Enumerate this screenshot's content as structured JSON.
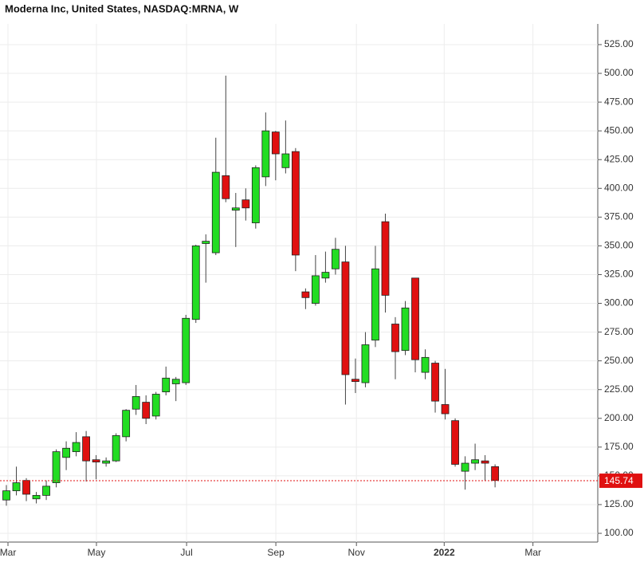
{
  "chart_data": {
    "type": "candlestick",
    "title": "Moderna Inc, United States, NASDAQ:MRNA, W",
    "open": [
      129,
      137,
      146,
      130,
      133,
      144,
      166,
      171,
      184,
      164,
      161,
      163,
      184,
      208,
      214,
      202,
      223,
      230,
      231,
      286,
      352,
      344,
      411,
      381,
      390,
      370,
      410,
      449,
      418,
      432,
      310,
      300,
      322,
      330,
      336,
      234,
      231,
      268,
      371,
      282,
      259,
      322,
      240,
      248,
      212,
      198,
      154,
      161,
      163,
      158
    ],
    "high": [
      142,
      158,
      148,
      136,
      146,
      173,
      180,
      188,
      189,
      168,
      166,
      187,
      208,
      229,
      220,
      223,
      245,
      236,
      290,
      351,
      360,
      444,
      498,
      396,
      400,
      420,
      466,
      450,
      459,
      435,
      313,
      342,
      345,
      357,
      350,
      252,
      275,
      350,
      378,
      288,
      302,
      322,
      260,
      250,
      243,
      200,
      167,
      178,
      168,
      160
    ],
    "low": [
      124,
      133,
      128,
      126,
      129,
      140,
      155,
      167,
      145,
      147,
      158,
      162,
      180,
      203,
      195,
      199,
      220,
      215,
      229,
      283,
      318,
      342,
      388,
      349,
      372,
      365,
      402,
      407,
      413,
      328,
      295,
      298,
      318,
      325,
      212,
      222,
      227,
      262,
      292,
      234,
      255,
      240,
      234,
      205,
      199,
      158,
      138,
      155,
      146,
      140
    ],
    "close": [
      137,
      144,
      134,
      133,
      141,
      171,
      174,
      179,
      163,
      162,
      163,
      185,
      207,
      219,
      200,
      221,
      235,
      234,
      287,
      350,
      354,
      414,
      391,
      383,
      383,
      418,
      450,
      430,
      430,
      342,
      305,
      324,
      327,
      347,
      238,
      232,
      264,
      330,
      307,
      258,
      296,
      251,
      253,
      215,
      204,
      160,
      161,
      164,
      161,
      146
    ],
    "up_color": "#22dd22",
    "down_color": "#e01010",
    "last_price": 145.74,
    "last_price_color": "#e01010",
    "xlim": [
      -0.64,
      59.3
    ],
    "xticks": [
      {
        "value": 0.16,
        "label": "Mar"
      },
      {
        "value": 9.03,
        "label": "May"
      },
      {
        "value": 18.07,
        "label": "Jul"
      },
      {
        "value": 27.02,
        "label": "Sep"
      },
      {
        "value": 35.1,
        "label": "Nov"
      },
      {
        "value": 43.9,
        "label": "2022"
      },
      {
        "value": 52.8,
        "label": "Mar"
      }
    ],
    "ylim": [
      92.4,
      543
    ],
    "yticks": [
      {
        "value": 100,
        "label": "100.00"
      },
      {
        "value": 125,
        "label": "125.00"
      },
      {
        "value": 150,
        "label": "150.00"
      },
      {
        "value": 175,
        "label": "175.00"
      },
      {
        "value": 200,
        "label": "200.00"
      },
      {
        "value": 225,
        "label": "225.00"
      },
      {
        "value": 250,
        "label": "250.00"
      },
      {
        "value": 275,
        "label": "275.00"
      },
      {
        "value": 300,
        "label": "300.00"
      },
      {
        "value": 325,
        "label": "325.00"
      },
      {
        "value": 350,
        "label": "350.00"
      },
      {
        "value": 375,
        "label": "375.00"
      },
      {
        "value": 400,
        "label": "400.00"
      },
      {
        "value": 425,
        "label": "425.00"
      },
      {
        "value": 450,
        "label": "450.00"
      },
      {
        "value": 475,
        "label": "475.00"
      },
      {
        "value": 500,
        "label": "500.00"
      },
      {
        "value": 525,
        "label": "525.00"
      }
    ],
    "grid": true
  }
}
